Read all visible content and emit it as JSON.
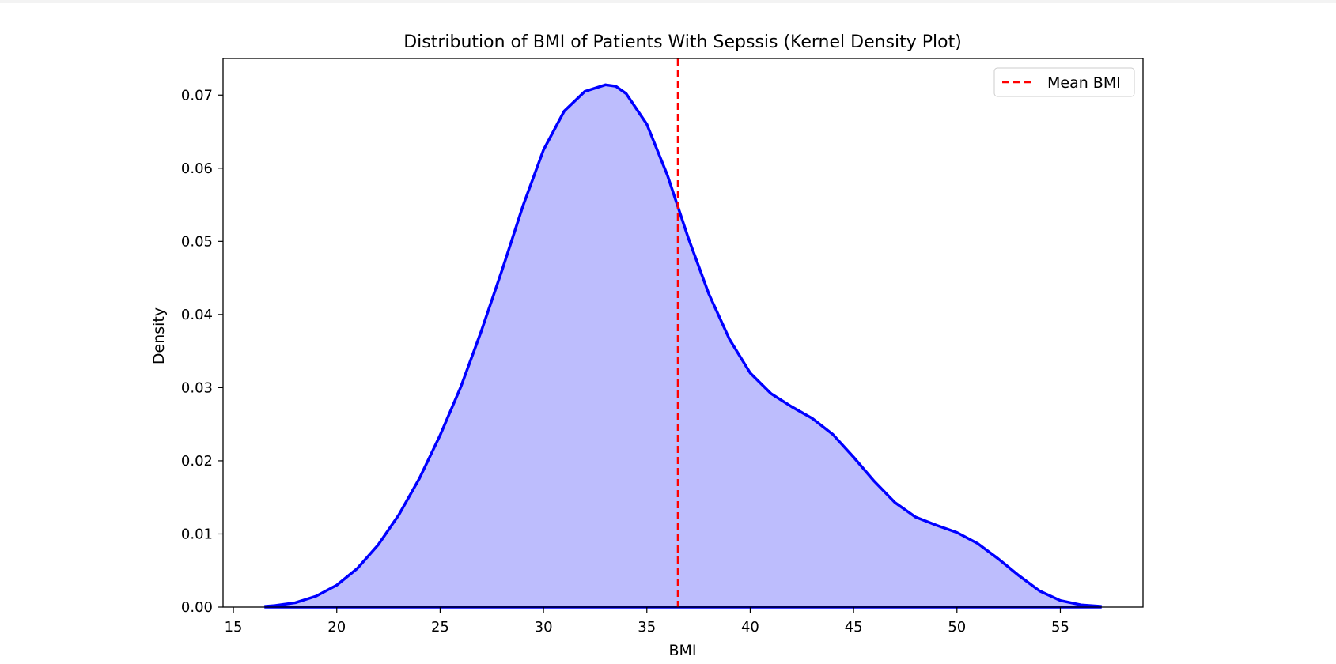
{
  "chart_data": {
    "type": "area",
    "title": "Distribution of BMI of Patients With Sepssis (Kernel Density Plot)",
    "xlabel": "BMI",
    "ylabel": "Density",
    "xlim": [
      14.5,
      59.0
    ],
    "ylim": [
      0,
      0.075
    ],
    "xticks": [
      15,
      20,
      25,
      30,
      35,
      40,
      45,
      50,
      55
    ],
    "yticks": [
      0.0,
      0.01,
      0.02,
      0.03,
      0.04,
      0.05,
      0.06,
      0.07
    ],
    "grid": false,
    "legend": {
      "position": "top-right",
      "entries": [
        "Mean BMI"
      ]
    },
    "series": [
      {
        "kind": "kde",
        "color": "#0000ff",
        "fill": "#bdbdfd",
        "x": [
          16.5,
          17,
          18,
          19,
          20,
          21,
          22,
          23,
          24,
          25,
          26,
          27,
          28,
          29,
          30,
          31,
          32,
          33,
          33.5,
          34,
          35,
          36,
          37,
          38,
          39,
          40,
          41,
          42,
          43,
          44,
          45,
          46,
          47,
          48,
          49,
          50,
          51,
          52,
          53,
          54,
          55,
          56,
          57
        ],
        "y": [
          0.0001,
          0.0002,
          0.0006,
          0.0015,
          0.003,
          0.0053,
          0.0085,
          0.0126,
          0.0176,
          0.0235,
          0.0301,
          0.0378,
          0.0461,
          0.0548,
          0.0625,
          0.0678,
          0.0705,
          0.0714,
          0.0712,
          0.0702,
          0.066,
          0.059,
          0.0505,
          0.0428,
          0.0366,
          0.032,
          0.0292,
          0.0274,
          0.0258,
          0.0236,
          0.0205,
          0.0172,
          0.0143,
          0.0123,
          0.0112,
          0.0102,
          0.0087,
          0.0066,
          0.0043,
          0.0022,
          0.0009,
          0.0003,
          0.0001
        ]
      }
    ],
    "annotations": [
      {
        "kind": "vline",
        "x": 36.5,
        "color": "#ff0000",
        "style": "dashed",
        "label": "Mean BMI"
      }
    ]
  }
}
